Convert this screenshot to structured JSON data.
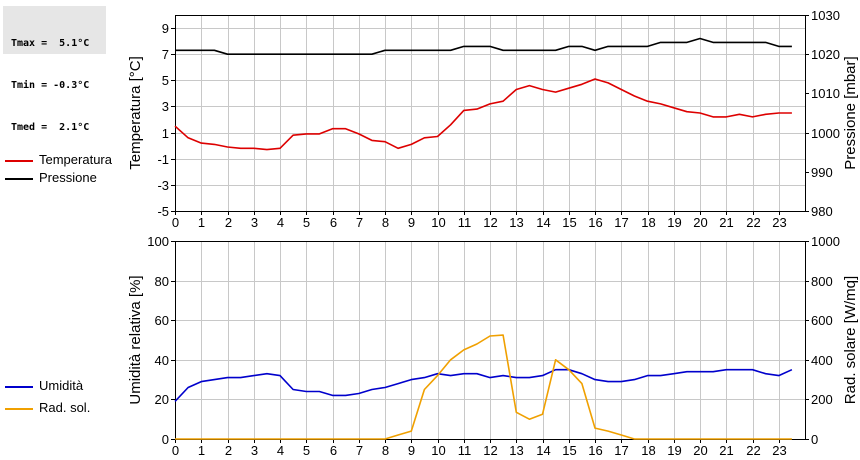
{
  "stats": {
    "tmax": "Tmax =  5.1°C",
    "tmin": "Tmin = -0.3°C",
    "tmed": "Tmed =  2.1°C"
  },
  "legend_top": [
    {
      "label": "Temperatura",
      "color": "#dd0000"
    },
    {
      "label": "Pressione",
      "color": "#000000"
    }
  ],
  "legend_bottom": [
    {
      "label": "Umidità",
      "color": "#0000cc"
    },
    {
      "label": "Rad. sol.",
      "color": "#f0a000"
    }
  ],
  "chart_data": [
    {
      "type": "line",
      "xlim": [
        0,
        24
      ],
      "xticks": [
        "0",
        "1",
        "2",
        "3",
        "4",
        "5",
        "6",
        "7",
        "8",
        "9",
        "10",
        "11",
        "12",
        "13",
        "14",
        "15",
        "16",
        "17",
        "18",
        "19",
        "20",
        "21",
        "22",
        "23"
      ],
      "ylabel": "Temperatura [°C]",
      "ylim": [
        -5,
        10
      ],
      "yticks": [
        "-5",
        "-3",
        "-1",
        "1",
        "3",
        "5",
        "7",
        "9"
      ],
      "y2label": "Pressione [mbar]",
      "y2lim": [
        980,
        1030
      ],
      "y2ticks": [
        "980",
        "990",
        "1000",
        "1010",
        "1020",
        "1030"
      ],
      "grid": true,
      "legend_position": "left",
      "series": [
        {
          "name": "Temperatura",
          "axis": "left",
          "color": "#dd0000",
          "x": [
            0,
            0.5,
            1,
            1.5,
            2,
            2.5,
            3,
            3.5,
            4,
            4.5,
            5,
            5.5,
            6,
            6.5,
            7,
            7.5,
            8,
            8.5,
            9,
            9.5,
            10,
            10.5,
            11,
            11.5,
            12,
            12.5,
            13,
            13.5,
            14,
            14.5,
            15,
            15.5,
            16,
            16.5,
            17,
            17.5,
            18,
            18.5,
            19,
            19.5,
            20,
            20.5,
            21,
            21.5,
            22,
            22.5,
            23,
            23.5
          ],
          "y": [
            1.5,
            0.6,
            0.2,
            0.1,
            -0.1,
            -0.2,
            -0.2,
            -0.3,
            -0.2,
            0.8,
            0.9,
            0.9,
            1.3,
            1.3,
            0.9,
            0.4,
            0.3,
            -0.2,
            0.1,
            0.6,
            0.7,
            1.6,
            2.7,
            2.8,
            3.2,
            3.4,
            4.3,
            4.6,
            4.3,
            4.1,
            4.4,
            4.7,
            5.1,
            4.8,
            4.3,
            3.8,
            3.4,
            3.2,
            2.9,
            2.6,
            2.5,
            2.2,
            2.2,
            2.4,
            2.2,
            2.4,
            2.5,
            2.5
          ]
        },
        {
          "name": "Pressione",
          "axis": "right",
          "color": "#000000",
          "x": [
            0,
            1.5,
            2,
            7.5,
            8,
            10.5,
            11,
            12,
            12.5,
            14.5,
            15,
            15.5,
            16,
            16.5,
            18,
            18.5,
            19.5,
            20,
            20.5,
            22.5,
            23,
            23.5
          ],
          "y": [
            1021,
            1021,
            1020,
            1020,
            1021,
            1021,
            1022,
            1022,
            1021,
            1021,
            1022,
            1022,
            1021,
            1022,
            1022,
            1023,
            1023,
            1024,
            1023,
            1023,
            1022,
            1022
          ]
        }
      ]
    },
    {
      "type": "line",
      "xlim": [
        0,
        24
      ],
      "xticks": [
        "0",
        "1",
        "2",
        "3",
        "4",
        "5",
        "6",
        "7",
        "8",
        "9",
        "10",
        "11",
        "12",
        "13",
        "14",
        "15",
        "16",
        "17",
        "18",
        "19",
        "20",
        "21",
        "22",
        "23"
      ],
      "ylabel": "Umidità relativa [%]",
      "ylim": [
        0,
        100
      ],
      "yticks": [
        "0",
        "20",
        "40",
        "60",
        "80",
        "100"
      ],
      "y2label": "Rad. solare [W/mq]",
      "y2lim": [
        0,
        1000
      ],
      "y2ticks": [
        "0",
        "200",
        "400",
        "600",
        "800",
        "1000"
      ],
      "grid": true,
      "legend_position": "left",
      "series": [
        {
          "name": "Umidità",
          "axis": "left",
          "color": "#0000cc",
          "x": [
            0,
            0.5,
            1,
            1.5,
            2,
            2.5,
            3,
            3.5,
            4,
            4.5,
            5,
            5.5,
            6,
            6.5,
            7,
            7.5,
            8,
            8.5,
            9,
            9.5,
            10,
            10.5,
            11,
            11.5,
            12,
            12.5,
            13,
            13.5,
            14,
            14.5,
            15,
            15.5,
            16,
            16.5,
            17,
            17.5,
            18,
            18.5,
            19,
            19.5,
            20,
            20.5,
            21,
            21.5,
            22,
            22.5,
            23,
            23.5
          ],
          "y": [
            19,
            26,
            29,
            30,
            31,
            31,
            32,
            33,
            32,
            25,
            24,
            24,
            22,
            22,
            23,
            25,
            26,
            28,
            30,
            31,
            33,
            32,
            33,
            33,
            31,
            32,
            31,
            31,
            32,
            35,
            35,
            33,
            30,
            29,
            29,
            30,
            32,
            32,
            33,
            34,
            34,
            34,
            35,
            35,
            35,
            33,
            32,
            35
          ]
        },
        {
          "name": "Rad. sol.",
          "axis": "right",
          "color": "#f0a000",
          "x": [
            0,
            8,
            8.5,
            9,
            9.5,
            10,
            10.5,
            11,
            11.5,
            12,
            12.5,
            13,
            13.5,
            14,
            14.5,
            15,
            15.5,
            16,
            16.5,
            17,
            17.5,
            18,
            23.5
          ],
          "y": [
            0,
            0,
            20,
            40,
            250,
            320,
            400,
            450,
            480,
            520,
            525,
            135,
            100,
            125,
            400,
            350,
            280,
            55,
            40,
            20,
            0,
            0,
            0
          ]
        }
      ]
    }
  ]
}
